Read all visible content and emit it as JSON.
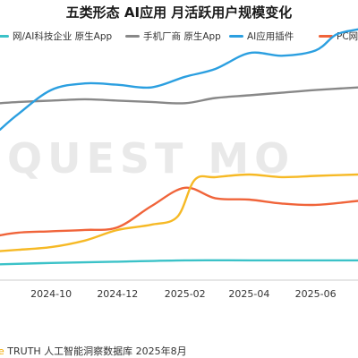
{
  "title": "五类形态 AI应用 月活跃用户规模变化",
  "watermark": "QUEST MO",
  "source": {
    "brand": "e",
    "text": " TRUTH 人工智能洞察数据库 2025年8月"
  },
  "chart_data": {
    "type": "line",
    "title": "五类形态 AI应用 月活跃用户规模变化",
    "x_ticks": [
      "2024-10",
      "2024-12",
      "2025-02",
      "2025-04",
      "2025-06"
    ],
    "xlim": [
      "2024-08-15",
      "2025-07-10"
    ],
    "ylim": [
      0,
      100
    ],
    "grid": false,
    "legend_position": "top",
    "series": [
      {
        "name": "网/AI科技企业 原生App",
        "color": "#3bc2c8",
        "x": [
          "2024-08-15",
          "2024-10-01",
          "2024-12-01",
          "2025-02-01",
          "2025-04-01",
          "2025-07-10"
        ],
        "y": [
          6,
          6.5,
          7,
          7.5,
          7.5,
          7.5
        ]
      },
      {
        "name": "手机厂商 原生App",
        "color": "#888888",
        "x": [
          "2024-08-15",
          "2024-09-01",
          "2024-10-01",
          "2024-11-01",
          "2024-12-01",
          "2025-01-01",
          "2025-02-01",
          "2025-03-01",
          "2025-04-01",
          "2025-05-01",
          "2025-06-01",
          "2025-07-10"
        ],
        "y": [
          67,
          67.5,
          68,
          68.5,
          68,
          67.5,
          67,
          69,
          70,
          71,
          72,
          73
        ]
      },
      {
        "name": "AI应用插件",
        "color": "#2b9fe0",
        "x": [
          "2024-08-15",
          "2024-09-01",
          "2024-10-01",
          "2024-11-01",
          "2024-12-01",
          "2025-01-01",
          "2025-02-01",
          "2025-03-01",
          "2025-04-01",
          "2025-05-01",
          "2025-06-01",
          "2025-06-20",
          "2025-07-10"
        ],
        "y": [
          57,
          63,
          72,
          74.5,
          74,
          73,
          77,
          80,
          86,
          85,
          87,
          93,
          95
        ]
      },
      {
        "name": "PC网页",
        "color": "#f0643a",
        "x": [
          "2024-08-15",
          "2024-09-01",
          "2024-10-01",
          "2024-11-01",
          "2024-12-01",
          "2025-01-01",
          "2025-02-01",
          "2025-03-01",
          "2025-04-01",
          "2025-05-01",
          "2025-06-01",
          "2025-07-10"
        ],
        "y": [
          17,
          18,
          18.5,
          19,
          20,
          28,
          35,
          31,
          30.5,
          29,
          28.5,
          30
        ]
      },
      {
        "name": "",
        "color": "#f6b925",
        "x": [
          "2024-08-15",
          "2024-09-01",
          "2024-10-01",
          "2024-11-01",
          "2024-12-01",
          "2025-01-01",
          "2025-01-25",
          "2025-02-10",
          "2025-03-01",
          "2025-04-01",
          "2025-05-01",
          "2025-06-01",
          "2025-07-10"
        ],
        "y": [
          11,
          11.5,
          12.5,
          15,
          19,
          21,
          24,
          38,
          39,
          40,
          39,
          39.5,
          40
        ]
      }
    ],
    "legend": [
      {
        "label": "网/AI科技企业 原生App",
        "color": "#3bc2c8"
      },
      {
        "label": "手机厂商 原生App",
        "color": "#888888"
      },
      {
        "label": "AI应用插件",
        "color": "#2b9fe0"
      },
      {
        "label": "PC网页",
        "color": "#f0643a"
      }
    ]
  }
}
